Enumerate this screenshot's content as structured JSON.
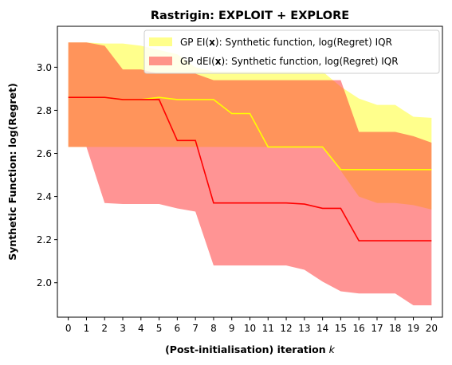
{
  "chart_data": {
    "type": "line",
    "title": "Rastrigin: EXPLOIT + EXPLORE",
    "xlabel": "(Post-initialisation) iteration",
    "xlabel_var": "k",
    "ylabel": "Synthetic Function: log(Regret)",
    "x": [
      0,
      1,
      2,
      3,
      4,
      5,
      6,
      7,
      8,
      9,
      10,
      11,
      12,
      13,
      14,
      15,
      16,
      17,
      18,
      19,
      20
    ],
    "xlim": [
      -0.6,
      20.6
    ],
    "ylim": [
      1.84,
      3.19
    ],
    "yticks": [
      2.0,
      2.2,
      2.4,
      2.6,
      2.8,
      3.0
    ],
    "grid": false,
    "legend_position": "upper-right",
    "series": [
      {
        "name_prefix": "GP EI(",
        "name_bold": "x",
        "name_suffix": "):   Synthetic function, log(Regret) IQR",
        "color": "#ffff00",
        "band_color": "#ffff00",
        "band_opacity": 0.45,
        "median": [
          2.86,
          2.86,
          2.86,
          2.85,
          2.85,
          2.86,
          2.85,
          2.85,
          2.85,
          2.785,
          2.785,
          2.63,
          2.63,
          2.63,
          2.63,
          2.525,
          2.525,
          2.525,
          2.525,
          2.525,
          2.525
        ],
        "upper": [
          3.115,
          3.115,
          3.11,
          3.11,
          3.1,
          3.08,
          3.06,
          3.0,
          2.98,
          2.98,
          2.98,
          2.98,
          2.98,
          2.98,
          2.98,
          2.91,
          2.855,
          2.825,
          2.825,
          2.77,
          2.765
        ],
        "lower": [
          2.63,
          2.63,
          2.63,
          2.63,
          2.63,
          2.63,
          2.63,
          2.63,
          2.63,
          2.63,
          2.63,
          2.63,
          2.63,
          2.63,
          2.63,
          2.52,
          2.4,
          2.37,
          2.37,
          2.36,
          2.34
        ]
      },
      {
        "name_prefix": "GP dEI(",
        "name_bold": "x",
        "name_suffix": "): Synthetic function, log(Regret) IQR",
        "color": "#ff0000",
        "band_color": "#ff2a2a",
        "band_opacity": 0.5,
        "median": [
          2.86,
          2.86,
          2.86,
          2.85,
          2.85,
          2.85,
          2.66,
          2.66,
          2.37,
          2.37,
          2.37,
          2.37,
          2.37,
          2.365,
          2.345,
          2.345,
          2.195,
          2.195,
          2.195,
          2.195,
          2.195
        ],
        "upper": [
          3.115,
          3.115,
          3.1,
          2.99,
          2.99,
          2.97,
          2.97,
          2.97,
          2.94,
          2.94,
          2.94,
          2.94,
          2.94,
          2.94,
          2.94,
          2.94,
          2.7,
          2.7,
          2.7,
          2.68,
          2.65
        ],
        "lower": [
          2.63,
          2.63,
          2.37,
          2.365,
          2.365,
          2.365,
          2.345,
          2.33,
          2.08,
          2.08,
          2.08,
          2.08,
          2.08,
          2.06,
          2.005,
          1.96,
          1.95,
          1.95,
          1.95,
          1.895,
          1.895
        ]
      }
    ]
  }
}
